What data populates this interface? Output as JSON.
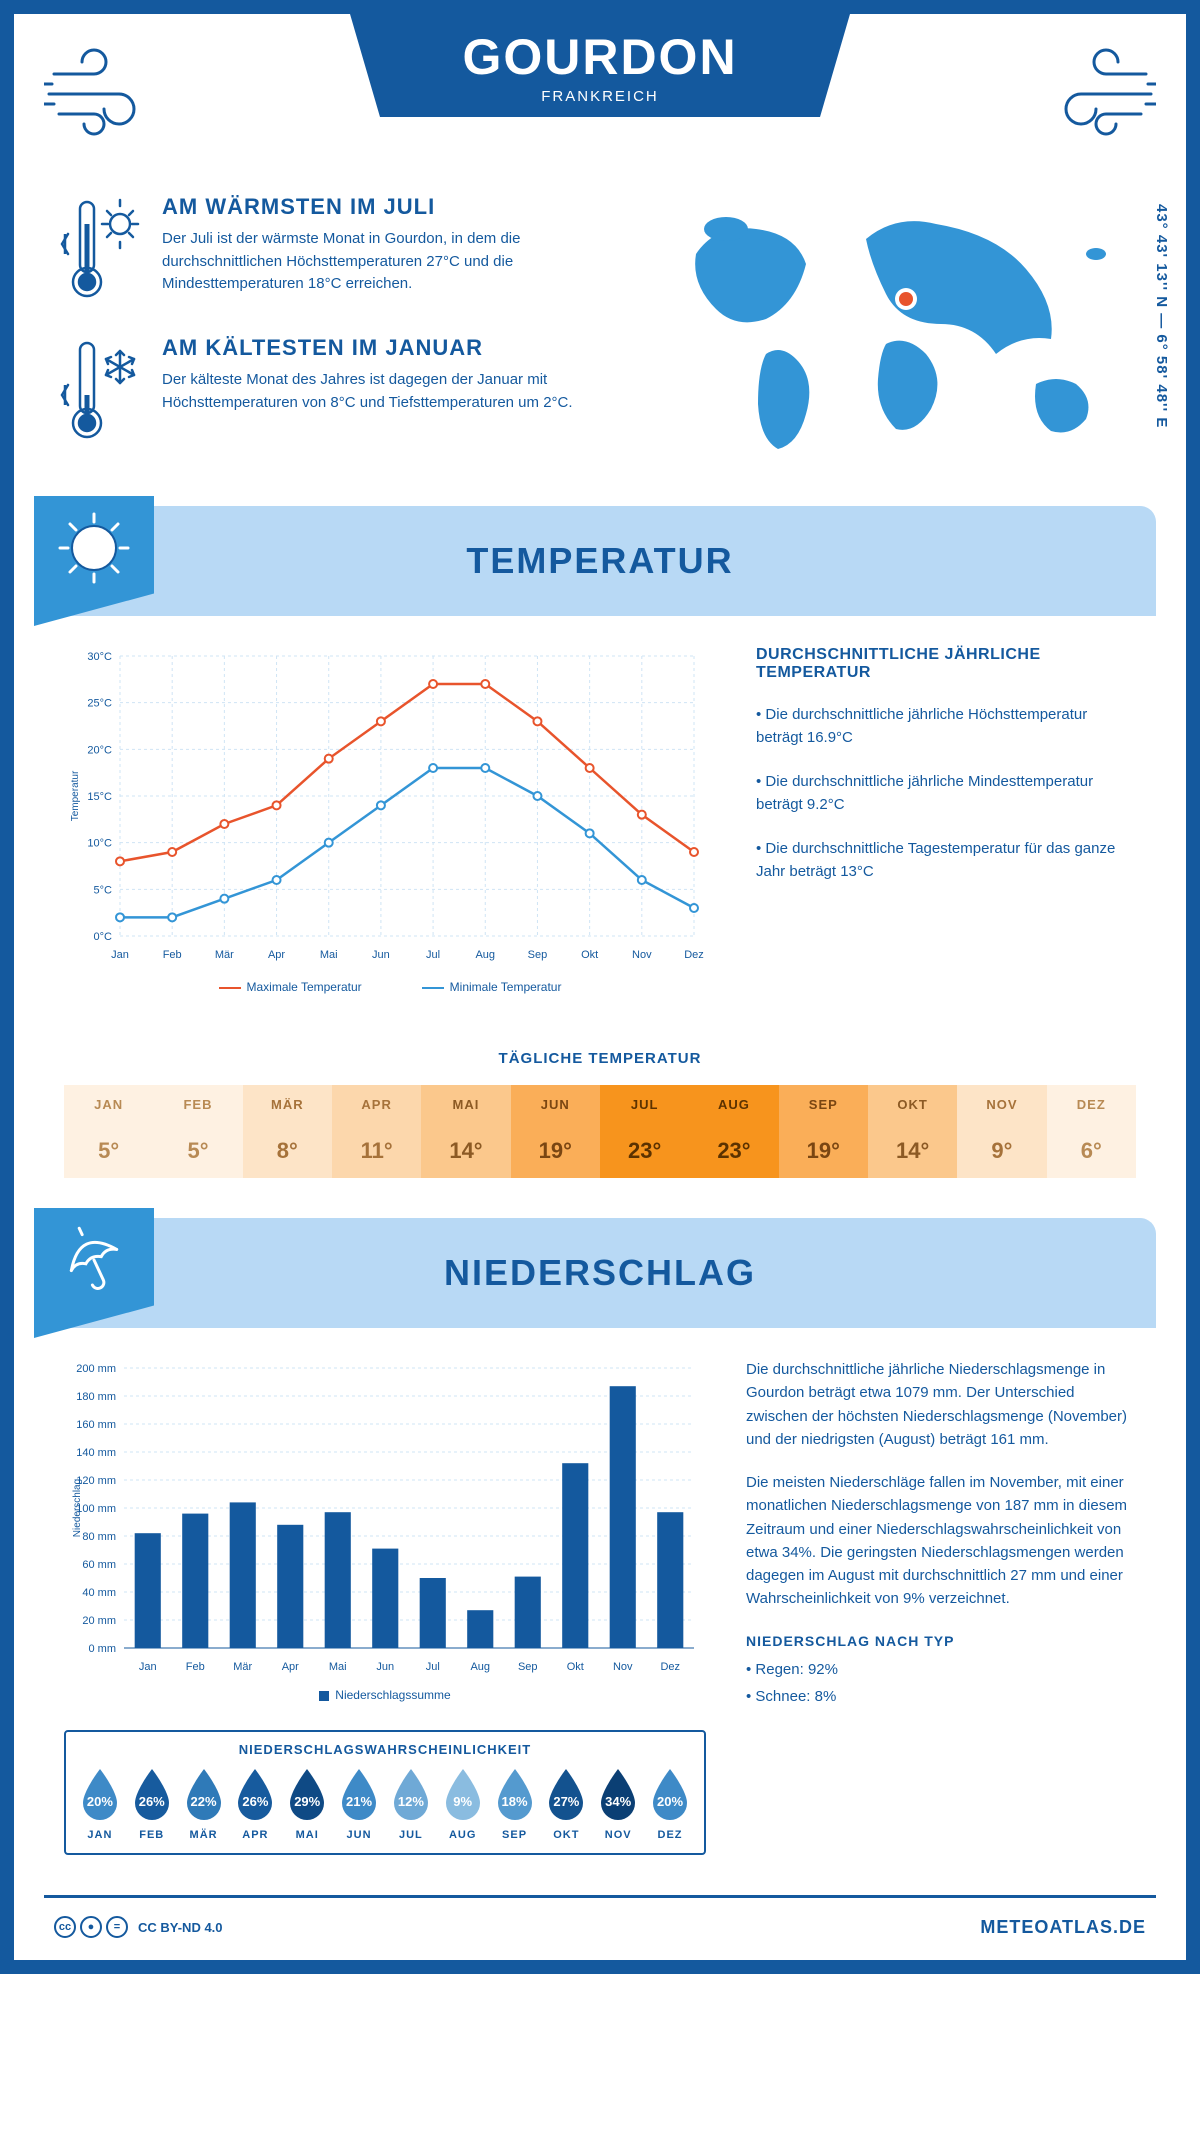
{
  "header": {
    "title": "GOURDON",
    "subtitle": "FRANKREICH",
    "coords": "43° 43' 13'' N — 6° 58' 48'' E"
  },
  "summary": {
    "warm": {
      "title": "AM WÄRMSTEN IM JULI",
      "text": "Der Juli ist der wärmste Monat in Gourdon, in dem die durchschnittlichen Höchsttemperaturen 27°C und die Mindesttemperaturen 18°C erreichen."
    },
    "cold": {
      "title": "AM KÄLTESTEN IM JANUAR",
      "text": "Der kälteste Monat des Jahres ist dagegen der Januar mit Höchsttemperaturen von 8°C und Tiefsttemperaturen um 2°C."
    }
  },
  "temperature": {
    "section_title": "TEMPERATUR",
    "chart": {
      "y_label": "Temperatur",
      "y_ticks": [
        "0°C",
        "5°C",
        "10°C",
        "15°C",
        "20°C",
        "25°C",
        "30°C"
      ],
      "y_min": 0,
      "y_max": 30,
      "x_labels": [
        "Jan",
        "Feb",
        "Mär",
        "Apr",
        "Mai",
        "Jun",
        "Jul",
        "Aug",
        "Sep",
        "Okt",
        "Nov",
        "Dez"
      ],
      "max": [
        8,
        9,
        12,
        14,
        19,
        23,
        27,
        27,
        23,
        18,
        13,
        9
      ],
      "min": [
        2,
        2,
        4,
        6,
        10,
        14,
        18,
        18,
        15,
        11,
        6,
        3
      ],
      "max_color": "#e8542c",
      "min_color": "#3395d6",
      "grid_color": "#cfe4f5",
      "legend_max": "Maximale Temperatur",
      "legend_min": "Minimale Temperatur"
    },
    "side": {
      "title": "DURCHSCHNITTLICHE JÄHRLICHE TEMPERATUR",
      "p1": "• Die durchschnittliche jährliche Höchsttemperatur beträgt 16.9°C",
      "p2": "• Die durchschnittliche jährliche Mindesttemperatur beträgt 9.2°C",
      "p3": "• Die durchschnittliche Tagestemperatur für das ganze Jahr beträgt 13°C"
    },
    "daily": {
      "title": "TÄGLICHE TEMPERATUR",
      "months": [
        "JAN",
        "FEB",
        "MÄR",
        "APR",
        "MAI",
        "JUN",
        "JUL",
        "AUG",
        "SEP",
        "OKT",
        "NOV",
        "DEZ"
      ],
      "values": [
        5,
        5,
        8,
        11,
        14,
        19,
        23,
        23,
        19,
        14,
        9,
        6
      ],
      "colors": [
        "#fef1e2",
        "#fef1e2",
        "#fde4c7",
        "#fcd7ac",
        "#fbc88c",
        "#faae58",
        "#f7941d",
        "#f7941d",
        "#faae58",
        "#fbc88c",
        "#fde4c7",
        "#fef1e2"
      ],
      "text_colors": [
        "#b88a54",
        "#b88a54",
        "#a6723a",
        "#a6723a",
        "#8c5a24",
        "#7a4612",
        "#5c3200",
        "#5c3200",
        "#7a4612",
        "#8c5a24",
        "#a6723a",
        "#b88a54"
      ]
    }
  },
  "precip": {
    "section_title": "NIEDERSCHLAG",
    "chart": {
      "y_label": "Niederschlag",
      "y_min": 0,
      "y_max": 200,
      "y_step": 20,
      "x_labels": [
        "Jan",
        "Feb",
        "Mär",
        "Apr",
        "Mai",
        "Jun",
        "Jul",
        "Aug",
        "Sep",
        "Okt",
        "Nov",
        "Dez"
      ],
      "values": [
        82,
        96,
        104,
        88,
        97,
        71,
        50,
        27,
        51,
        132,
        187,
        97
      ],
      "bar_color": "#14599e",
      "legend": "Niederschlagssumme"
    },
    "text": {
      "p1": "Die durchschnittliche jährliche Niederschlagsmenge in Gourdon beträgt etwa 1079 mm. Der Unterschied zwischen der höchsten Niederschlagsmenge (November) und der niedrigsten (August) beträgt 161 mm.",
      "p2": "Die meisten Niederschläge fallen im November, mit einer monatlichen Niederschlagsmenge von 187 mm in diesem Zeitraum und einer Niederschlagswahrscheinlichkeit von etwa 34%. Die geringsten Niederschlagsmengen werden dagegen im August mit durchschnittlich 27 mm und einer Wahrscheinlichkeit von 9% verzeichnet.",
      "type_title": "NIEDERSCHLAG NACH TYP",
      "type_1": "• Regen: 92%",
      "type_2": "• Schnee: 8%"
    },
    "prob": {
      "title": "NIEDERSCHLAGSWAHRSCHEINLICHKEIT",
      "months": [
        "JAN",
        "FEB",
        "MÄR",
        "APR",
        "MAI",
        "JUN",
        "JUL",
        "AUG",
        "SEP",
        "OKT",
        "NOV",
        "DEZ"
      ],
      "values": [
        "20%",
        "26%",
        "22%",
        "26%",
        "29%",
        "21%",
        "12%",
        "9%",
        "18%",
        "27%",
        "34%",
        "20%"
      ],
      "colors": [
        "#3e8ac7",
        "#175b9e",
        "#2f7ab8",
        "#175b9e",
        "#0f4a85",
        "#3e8ac7",
        "#6fa9d6",
        "#8abce0",
        "#549acf",
        "#13528f",
        "#0b3f74",
        "#3e8ac7"
      ]
    }
  },
  "footer": {
    "license": "CC BY-ND 4.0",
    "site": "METEOATLAS.DE"
  }
}
